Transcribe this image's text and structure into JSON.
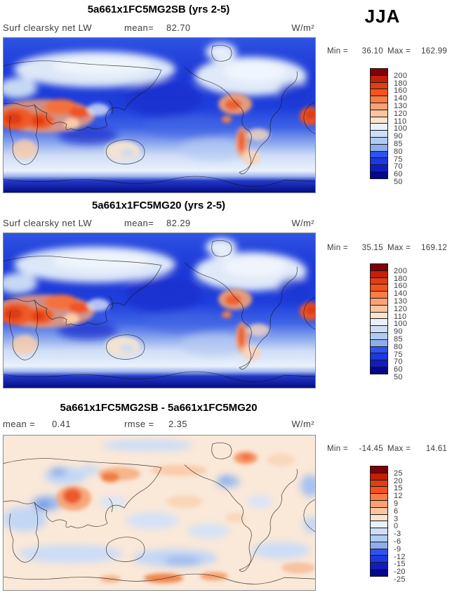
{
  "season_label": "JJA",
  "panels": [
    {
      "title": "5a661x1FC5MG2SB (yrs 2-5)",
      "variable": "Surf clearsky net LW",
      "mean_label": "mean=",
      "mean": "82.70",
      "unit": "W/m²",
      "min_label": "Min =",
      "min": "36.10",
      "max_label": "Max =",
      "max": "162.99"
    },
    {
      "title": "5a661x1FC5MG20 (yrs 2-5)",
      "variable": "Surf clearsky net LW",
      "mean_label": "mean=",
      "mean": "82.29",
      "unit": "W/m²",
      "min_label": "Min =",
      "min": "35.15",
      "max_label": "Max =",
      "max": "169.12"
    },
    {
      "title": "5a661x1FC5MG2SB - 5a661x1FC5MG20",
      "mean_label": "mean =",
      "mean": "0.41",
      "rmse_label": "rmse =",
      "rmse": "2.35",
      "unit": "W/m²",
      "min_label": "Min =",
      "min": "-14.45",
      "max_label": "Max =",
      "max": "14.61"
    }
  ],
  "colorbars": {
    "absolute": {
      "labels": [
        "200",
        "180",
        "160",
        "140",
        "130",
        "120",
        "110",
        "100",
        "90",
        "85",
        "80",
        "75",
        "70",
        "60",
        "50"
      ],
      "colors": [
        "#7F0008",
        "#C22008",
        "#E33E12",
        "#F8511C",
        "#FA7C47",
        "#FBA173",
        "#FCC59E",
        "#FDE3CC",
        "#EAF1FB",
        "#CDDEF6",
        "#AFCBF2",
        "#8DADEE",
        "#2E52F0",
        "#1C38E2",
        "#0F1DC0",
        "#04088B"
      ]
    },
    "difference": {
      "labels": [
        "25",
        "20",
        "15",
        "12",
        "9",
        "6",
        "3",
        "0",
        "-3",
        "-6",
        "-9",
        "-12",
        "-15",
        "-20",
        "-25"
      ],
      "colors": [
        "#7F0008",
        "#C22008",
        "#E33E12",
        "#F8511C",
        "#FA7C47",
        "#FBA173",
        "#FCC59E",
        "#FDE3CC",
        "#EAF1FB",
        "#CDDEF6",
        "#AFCBF2",
        "#8DADEE",
        "#2E52F0",
        "#1C38E2",
        "#0F1DC0",
        "#04088B"
      ]
    }
  },
  "chart_data": [
    {
      "type": "heatmap",
      "subtype": "global latitude-longitude filled-contour map",
      "title": "5a661x1FC5MG2SB (yrs 2-5)",
      "season": "JJA",
      "variable": "Surf clearsky net LW",
      "units": "W/m²",
      "mean": 82.7,
      "min": 36.1,
      "max": 162.99,
      "contour_levels": [
        50,
        60,
        70,
        75,
        80,
        85,
        90,
        100,
        110,
        120,
        130,
        140,
        160,
        180,
        200
      ],
      "palette": "blue (low) to white to red (high), 16 bins",
      "legend_position": "right",
      "notes": "Pacific-centered world map; oceans mostly blue 50-90, deserts (Sahara, Arabia, Central Asia, Tibet, western North America, Andes) orange-red 110-160, Antarctica dark blue < 50"
    },
    {
      "type": "heatmap",
      "subtype": "global latitude-longitude filled-contour map",
      "title": "5a661x1FC5MG20 (yrs 2-5)",
      "season": "JJA",
      "variable": "Surf clearsky net LW",
      "units": "W/m²",
      "mean": 82.29,
      "min": 35.15,
      "max": 169.12,
      "contour_levels": [
        50,
        60,
        70,
        75,
        80,
        85,
        90,
        100,
        110,
        120,
        130,
        140,
        160,
        180,
        200
      ],
      "palette": "blue (low) to white to red (high), 16 bins",
      "legend_position": "right",
      "notes": "same spatial pattern as first panel"
    },
    {
      "type": "heatmap",
      "subtype": "global latitude-longitude filled-contour difference map",
      "title": "5a661x1FC5MG2SB - 5a661x1FC5MG20",
      "season": "JJA",
      "variable": "Surf clearsky net LW difference",
      "units": "W/m²",
      "mean": 0.41,
      "rmse": 2.35,
      "min": -14.45,
      "max": 14.61,
      "contour_levels": [
        -25,
        -20,
        -15,
        -12,
        -9,
        -6,
        -3,
        0,
        3,
        6,
        9,
        12,
        15,
        20,
        25
      ],
      "palette": "blue (negative) to white to red (positive), 16 bins",
      "legend_position": "right",
      "notes": "mostly near zero (pale); positive blobs over India/Himalaya, Japan, northern Canada, Antarctic coast; negative blobs over Central Asia, Arabian Sea, western US, Southern Ocean"
    }
  ]
}
